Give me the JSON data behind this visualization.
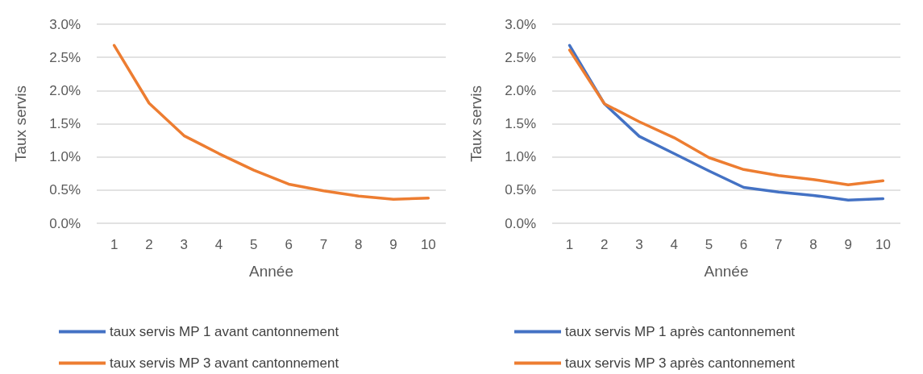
{
  "chart_data": [
    {
      "type": "line",
      "xlabel": "Année",
      "ylabel": "Taux servis",
      "categories": [
        "1",
        "2",
        "3",
        "4",
        "5",
        "6",
        "7",
        "8",
        "9",
        "10"
      ],
      "series": [
        {
          "name": "taux servis MP 1 avant cantonnement",
          "color": "#4472c4",
          "values": [
            null,
            null,
            null,
            null,
            null,
            null,
            null,
            null,
            null,
            null
          ]
        },
        {
          "name": "taux servis MP 3 avant cantonnement",
          "color": "#ed7d31",
          "values": [
            2.68,
            1.81,
            1.32,
            1.05,
            0.8,
            0.59,
            0.49,
            0.41,
            0.36,
            0.38
          ]
        }
      ],
      "ylim": [
        0,
        3
      ],
      "yticks": [
        {
          "value": 0,
          "label": "0.0%"
        },
        {
          "value": 0.5,
          "label": "0.5%"
        },
        {
          "value": 1,
          "label": "1.0%"
        },
        {
          "value": 1.5,
          "label": "1.5%"
        },
        {
          "value": 2,
          "label": "2.0%"
        },
        {
          "value": 2.5,
          "label": "2.5%"
        },
        {
          "value": 3,
          "label": "3.0%"
        }
      ],
      "grid": "y",
      "legend": "bottom",
      "marker": "none",
      "line_style": "solid"
    },
    {
      "type": "line",
      "xlabel": "Année",
      "ylabel": "Taux servis",
      "categories": [
        "1",
        "2",
        "3",
        "4",
        "5",
        "6",
        "7",
        "8",
        "9",
        "10"
      ],
      "series": [
        {
          "name": "taux servis MP 1 après cantonnement",
          "color": "#4472c4",
          "values": [
            2.68,
            1.8,
            1.31,
            1.05,
            0.79,
            0.54,
            0.47,
            0.42,
            0.35,
            0.37
          ]
        },
        {
          "name": "taux servis MP 3 après cantonnement",
          "color": "#ed7d31",
          "values": [
            2.61,
            1.8,
            1.53,
            1.29,
            0.99,
            0.81,
            0.72,
            0.66,
            0.58,
            0.64
          ]
        }
      ],
      "ylim": [
        0,
        3
      ],
      "yticks": [
        {
          "value": 0,
          "label": "0.0%"
        },
        {
          "value": 0.5,
          "label": "0.5%"
        },
        {
          "value": 1,
          "label": "1.0%"
        },
        {
          "value": 1.5,
          "label": "1.5%"
        },
        {
          "value": 2,
          "label": "2.0%"
        },
        {
          "value": 2.5,
          "label": "2.5%"
        },
        {
          "value": 3,
          "label": "3.0%"
        }
      ],
      "grid": "y",
      "legend": "bottom",
      "marker": "none",
      "line_style": "solid"
    }
  ]
}
